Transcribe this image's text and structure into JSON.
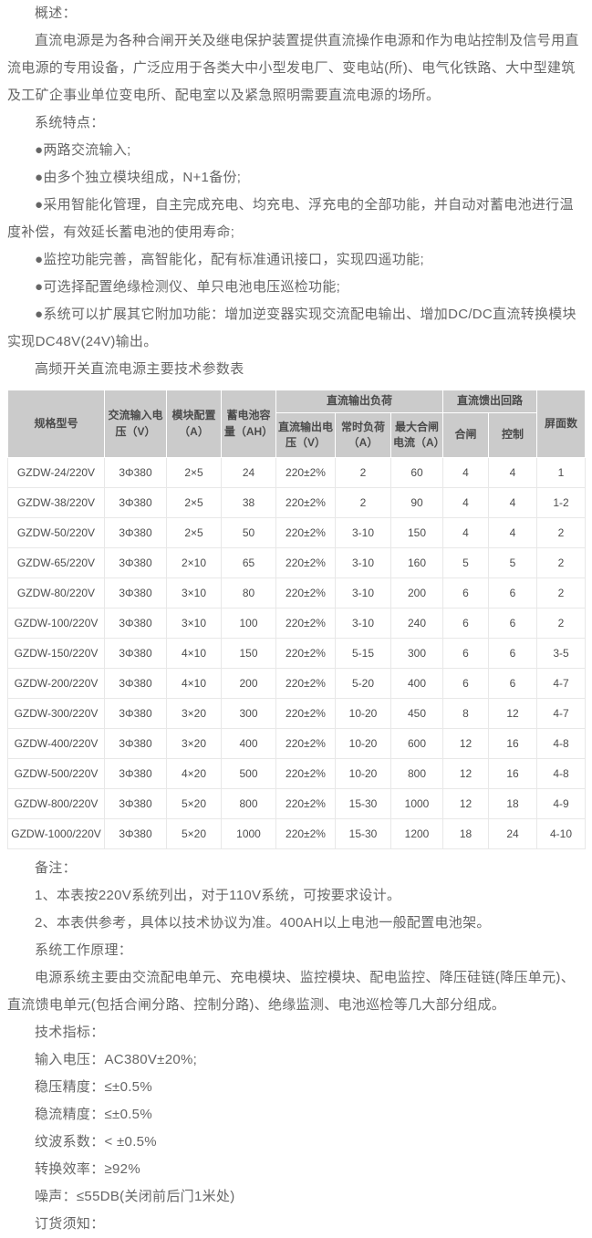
{
  "colors": {
    "page_bg": "#ffffff",
    "text": "#666666",
    "table_text": "#4d4d4d",
    "table_header_bg": "#cbcbcb",
    "table_header_text": "#4a4a4a",
    "table_border": "#e8e8e8"
  },
  "content_top": [
    "概述：",
    "直流电源是为各种合闸开关及继电保护装置提供直流操作电源和作为电站控制及信号用直流电源的专用设备，广泛应用于各类大中小型发电厂、变电站(所)、电气化铁路、大中型建筑及工矿企事业单位变电所、配电室以及紧急照明需要直流电源的场所。",
    "系统特点：",
    "●两路交流输入;",
    "●由多个独立模块组成，N+1备份;",
    "●采用智能化管理，自主完成充电、均充电、浮充电的全部功能，并自动对蓄电池进行温度补偿，有效延长蓄电池的使用寿命;",
    "●监控功能完善，高智能化，配有标准通讯接口，实现四遥功能;",
    "●可选择配置绝缘检测仪、单只电池电压巡检功能;",
    "●系统可以扩展其它附加功能：增加逆变器实现交流配电输出、增加DC/DC直流转换模块实现DC48V(24V)输出。",
    "高频开关直流电源主要技术参数表"
  ],
  "table": {
    "columns": {
      "model": "规格型号",
      "ac_input": "交流输入电压（V）",
      "module_config": "模块配置（A）",
      "battery_capacity": "蓄电池容量（AH）",
      "group_dc_output_load": "直流输出负荷",
      "dc_output_voltage": "直流输出电压（V）",
      "normal_load": "常时负荷（A）",
      "max_closing_current": "最大合闸电流（A）",
      "group_dc_feed_circuit": "直流馈出回路",
      "closing": "合闸",
      "control": "控制",
      "panel_count": "屏面数"
    },
    "rows": [
      [
        "GZDW-24/220V",
        "3Φ380",
        "2×5",
        "24",
        "220±2%",
        "2",
        "60",
        "4",
        "4",
        "1"
      ],
      [
        "GZDW-38/220V",
        "3Φ380",
        "2×5",
        "38",
        "220±2%",
        "2",
        "90",
        "4",
        "4",
        "1-2"
      ],
      [
        "GZDW-50/220V",
        "3Φ380",
        "2×5",
        "50",
        "220±2%",
        "3-10",
        "150",
        "4",
        "4",
        "2"
      ],
      [
        "GZDW-65/220V",
        "3Φ380",
        "2×10",
        "65",
        "220±2%",
        "3-10",
        "160",
        "5",
        "5",
        "2"
      ],
      [
        "GZDW-80/220V",
        "3Φ380",
        "3×10",
        "80",
        "220±2%",
        "3-10",
        "200",
        "6",
        "6",
        "2"
      ],
      [
        "GZDW-100/220V",
        "3Φ380",
        "3×10",
        "100",
        "220±2%",
        "3-10",
        "240",
        "6",
        "6",
        "2"
      ],
      [
        "GZDW-150/220V",
        "3Φ380",
        "4×10",
        "150",
        "220±2%",
        "5-15",
        "300",
        "6",
        "6",
        "3-5"
      ],
      [
        "GZDW-200/220V",
        "3Φ380",
        "4×10",
        "200",
        "220±2%",
        "5-20",
        "400",
        "6",
        "6",
        "4-7"
      ],
      [
        "GZDW-300/220V",
        "3Φ380",
        "3×20",
        "300",
        "220±2%",
        "10-20",
        "450",
        "8",
        "12",
        "4-7"
      ],
      [
        "GZDW-400/220V",
        "3Φ380",
        "3×20",
        "400",
        "220±2%",
        "10-20",
        "600",
        "12",
        "16",
        "4-8"
      ],
      [
        "GZDW-500/220V",
        "3Φ380",
        "4×20",
        "500",
        "220±2%",
        "10-20",
        "800",
        "12",
        "16",
        "4-8"
      ],
      [
        "GZDW-800/220V",
        "3Φ380",
        "5×20",
        "800",
        "220±2%",
        "15-30",
        "1000",
        "12",
        "18",
        "4-9"
      ],
      [
        "GZDW-1000/220V",
        "3Φ380",
        "5×20",
        "1000",
        "220±2%",
        "15-30",
        "1200",
        "18",
        "24",
        "4-10"
      ]
    ]
  },
  "content_bottom": [
    "备注：",
    "1、本表按220V系统列出，对于110V系统，可按要求设计。",
    "2、本表供参考，具体以技术协议为准。400AH以上电池一般配置电池架。",
    "系统工作原理：",
    "电源系统主要由交流配电单元、充电模块、监控模块、配电监控、降压硅链(降压单元)、直流馈电单元(包括合闸分路、控制分路)、绝缘监测、电池巡检等几大部分组成。",
    "技术指标：",
    "输入电压：AC380V±20%;",
    "稳压精度：≤±0.5%",
    "稳流精度：≤±0.5%",
    "纹波系数：< ±0.5%",
    "转换效率：≥92%",
    "噪声：≤55DB(关闭前后门1米处)",
    "订货须知："
  ]
}
